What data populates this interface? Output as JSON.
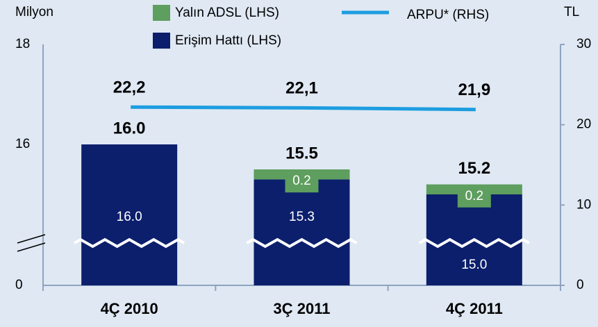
{
  "chart_data": {
    "type": "bar",
    "left_unit": "Milyon",
    "right_unit": "TL",
    "categories": [
      "4Ç 2010",
      "3Ç 2011",
      "4Ç 2011"
    ],
    "series": [
      {
        "name": "Erişim Hattı (LHS)",
        "color": "#0c1f6c",
        "values": [
          16.0,
          15.3,
          15.0
        ],
        "value_labels": [
          "16.0",
          "15.3",
          "15.0"
        ]
      },
      {
        "name": "Yalın ADSL (LHS)",
        "color": "#5e9e5e",
        "values": [
          null,
          0.2,
          0.2
        ]
      },
      {
        "name": "ARPU* (RHS)",
        "type": "line",
        "axis": "y2",
        "color": "#1d9de0",
        "values": [
          22.2,
          22.1,
          21.9
        ],
        "value_labels": [
          "22,2",
          "22,1",
          "21,9"
        ]
      }
    ],
    "totals": [
      16.0,
      15.5,
      15.2
    ],
    "total_labels": [
      "16.0",
      "15.5",
      "15.2"
    ],
    "ylim": [
      0,
      18
    ],
    "yticks": [
      0,
      16,
      18
    ],
    "axis_break": true,
    "y2lim": [
      0,
      30
    ],
    "y2ticks": [
      0,
      10,
      20,
      30
    ]
  }
}
